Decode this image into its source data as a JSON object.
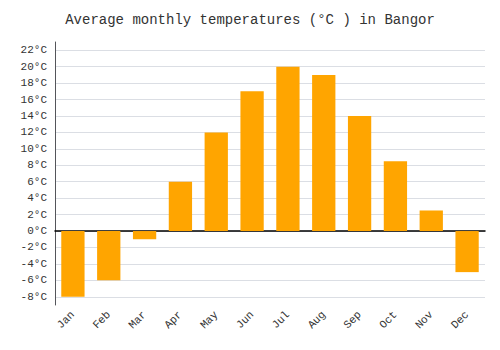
{
  "chart_data": {
    "type": "bar",
    "title": "Average monthly temperatures (°C ) in Bangor",
    "categories": [
      "Jan",
      "Feb",
      "Mar",
      "Apr",
      "May",
      "Jun",
      "Jul",
      "Aug",
      "Sep",
      "Oct",
      "Nov",
      "Dec"
    ],
    "values": [
      -8,
      -6,
      -1,
      6,
      12,
      17,
      20,
      19,
      14,
      8.5,
      2.5,
      -5
    ],
    "color": "#FFA500",
    "ylim": [
      -9,
      23
    ],
    "yticks": [
      {
        "value": -8,
        "label": "-8°C"
      },
      {
        "value": -6,
        "label": "-6°C"
      },
      {
        "value": -4,
        "label": "-4°C"
      },
      {
        "value": -2,
        "label": "-2°C"
      },
      {
        "value": 0,
        "label": "0°C"
      },
      {
        "value": 2,
        "label": "2°C"
      },
      {
        "value": 4,
        "label": "4°C"
      },
      {
        "value": 6,
        "label": "6°C"
      },
      {
        "value": 8,
        "label": "8°C"
      },
      {
        "value": 10,
        "label": "10°C"
      },
      {
        "value": 12,
        "label": "12°C"
      },
      {
        "value": 14,
        "label": "14°C"
      },
      {
        "value": 16,
        "label": "16°C"
      },
      {
        "value": 18,
        "label": "18°C"
      },
      {
        "value": 20,
        "label": "20°C"
      },
      {
        "value": 22,
        "label": "22°C"
      }
    ],
    "grid": true
  }
}
